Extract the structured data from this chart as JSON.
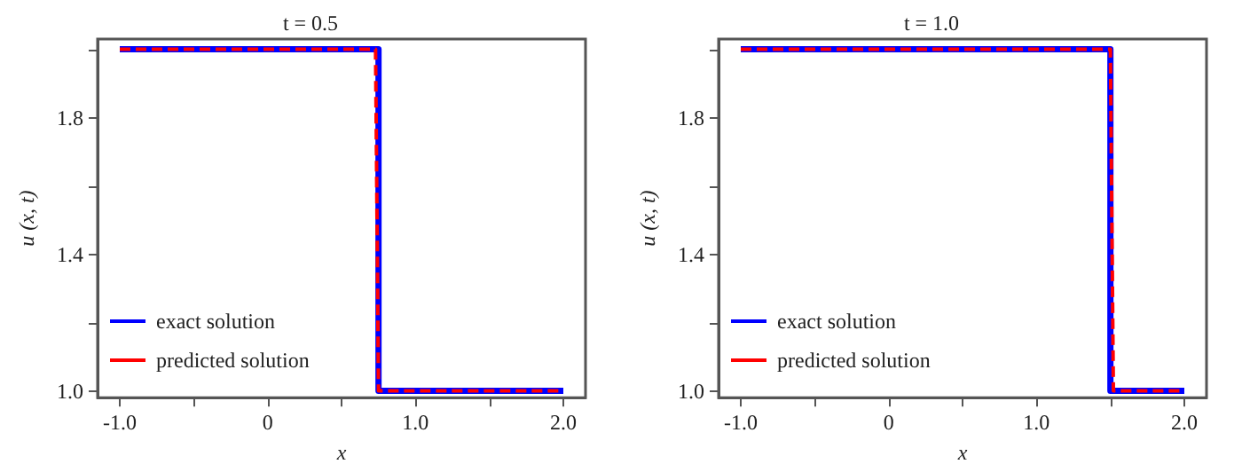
{
  "chart_data": [
    {
      "type": "line",
      "title": "t = 0.5",
      "xlabel": "x",
      "ylabel": "u (x, t)",
      "xlim": [
        -1.15,
        2.15
      ],
      "ylim": [
        0.98,
        2.03
      ],
      "xticks": [
        {
          "value": -1.0,
          "label": "-1.0"
        },
        {
          "value": -0.5,
          "label": null
        },
        0,
        {
          "value": 0.5,
          "label": null
        },
        {
          "value": 1.0,
          "label": "1.0"
        },
        {
          "value": 1.5,
          "label": null
        },
        {
          "value": 2.0,
          "label": "2.0"
        }
      ],
      "yticks": [
        {
          "value": 1.0,
          "label": "1.0"
        },
        {
          "value": 1.2,
          "label": null
        },
        {
          "value": 1.4,
          "label": "1.4"
        },
        {
          "value": 1.6,
          "label": null
        },
        {
          "value": 1.8,
          "label": "1.8"
        },
        {
          "value": 2.0,
          "label": null
        }
      ],
      "grid": false,
      "legend": "bottom left",
      "series": [
        {
          "name": "exact solution",
          "color": "#0000ff",
          "line_style": "solid",
          "x": [
            -1.0,
            0.75,
            0.75,
            2.0
          ],
          "values": [
            2.0,
            2.0,
            1.0,
            1.0
          ]
        },
        {
          "name": "predicted solution",
          "color": "#ff0000",
          "line_style": "dashed",
          "x": [
            -1.0,
            0.73,
            0.75,
            2.0
          ],
          "values": [
            2.0,
            2.0,
            1.0,
            1.0
          ]
        }
      ]
    },
    {
      "type": "line",
      "title": "t = 1.0",
      "xlabel": "x",
      "ylabel": "u (x, t)",
      "xlim": [
        -1.15,
        2.15
      ],
      "ylim": [
        0.98,
        2.03
      ],
      "xticks": [
        {
          "value": -1.0,
          "label": "-1.0"
        },
        {
          "value": -0.5,
          "label": null
        },
        0,
        {
          "value": 0.5,
          "label": null
        },
        {
          "value": 1.0,
          "label": "1.0"
        },
        {
          "value": 1.5,
          "label": null
        },
        {
          "value": 2.0,
          "label": "2.0"
        }
      ],
      "yticks": [
        {
          "value": 1.0,
          "label": "1.0"
        },
        {
          "value": 1.2,
          "label": null
        },
        {
          "value": 1.4,
          "label": "1.4"
        },
        {
          "value": 1.6,
          "label": null
        },
        {
          "value": 1.8,
          "label": "1.8"
        },
        {
          "value": 2.0,
          "label": null
        }
      ],
      "grid": false,
      "legend": "bottom left",
      "series": [
        {
          "name": "exact solution",
          "color": "#0000ff",
          "line_style": "solid",
          "x": [
            -1.0,
            1.5,
            1.5,
            2.0
          ],
          "values": [
            2.0,
            2.0,
            1.0,
            1.0
          ]
        },
        {
          "name": "predicted solution",
          "color": "#ff0000",
          "line_style": "dashed",
          "x": [
            -1.0,
            1.5,
            1.52,
            2.0
          ],
          "values": [
            2.0,
            2.0,
            1.0,
            1.0
          ]
        }
      ]
    }
  ]
}
